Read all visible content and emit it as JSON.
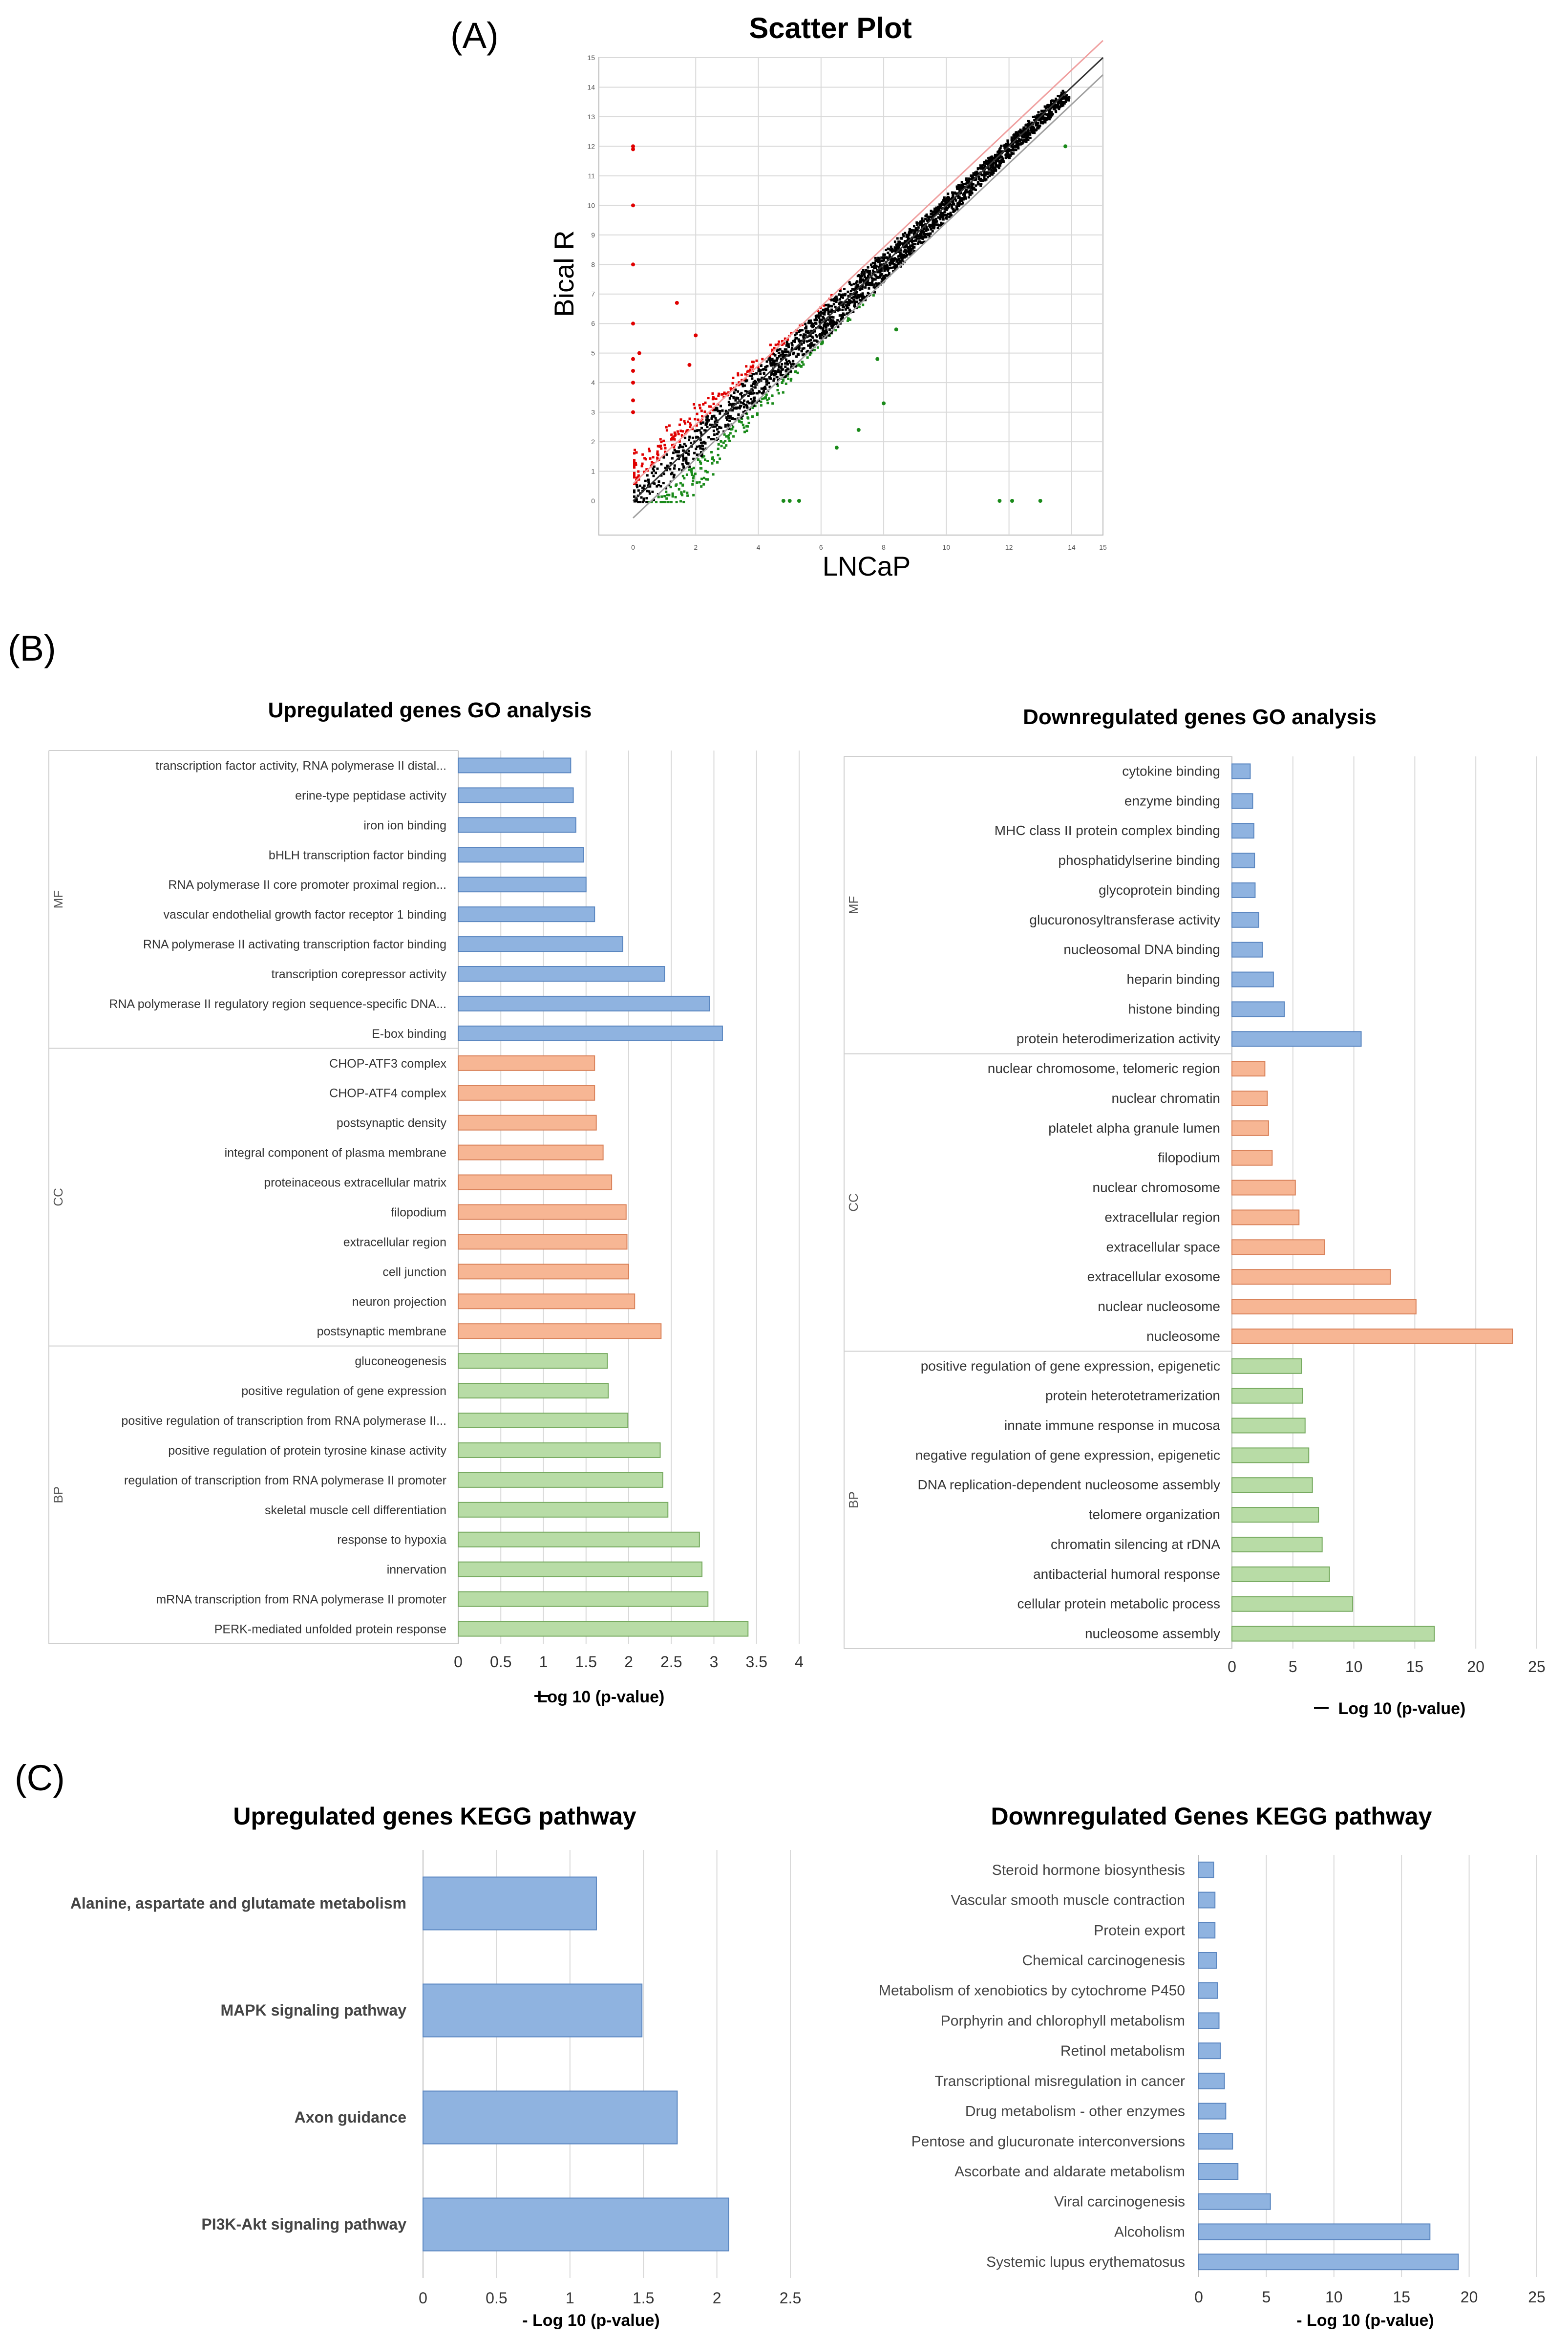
{
  "panels": {
    "a": "(A)",
    "b": "(B)",
    "c": "(C)"
  },
  "colors": {
    "mf": "#8fb3e0",
    "mf_stroke": "#5a86c0",
    "cc": "#f7b694",
    "cc_stroke": "#d9825a",
    "bp": "#b8dca6",
    "bp_stroke": "#77aa60",
    "up": "#e00000",
    "down": "#1a8a1a",
    "mid": "#000000",
    "grid": "#d9d9d9"
  },
  "chart_data": [
    {
      "id": "scatter",
      "type": "scatter",
      "title": "Scatter Plot",
      "xlabel": "LNCaP",
      "ylabel": "Bical R",
      "xlim": [
        0,
        15
      ],
      "ylim": [
        0,
        15
      ],
      "xticks": [
        "0",
        "2",
        "4",
        "6",
        "8",
        "10",
        "12",
        "14",
        "15"
      ],
      "yticks": [
        "0",
        "1",
        "2",
        "3",
        "4",
        "5",
        "6",
        "7",
        "8",
        "9",
        "10",
        "11",
        "12",
        "13",
        "14",
        "15"
      ],
      "lines": [
        {
          "name": "y = x",
          "slope": 1,
          "intercept": 0,
          "color": "#333333"
        },
        {
          "name": "upper threshold",
          "slope": 1,
          "intercept": 0.58,
          "color": "#f0a0a0"
        },
        {
          "name": "lower threshold",
          "slope": 1,
          "intercept": -0.58,
          "color": "#a0a0a0"
        }
      ],
      "outliers_up": [
        [
          0,
          12
        ],
        [
          0,
          11.9
        ],
        [
          0,
          10
        ],
        [
          0,
          8
        ],
        [
          0,
          6
        ],
        [
          0,
          4.8
        ],
        [
          0,
          4.4
        ],
        [
          0,
          4
        ],
        [
          0,
          3.4
        ],
        [
          0,
          3
        ],
        [
          0.2,
          5
        ],
        [
          1.4,
          6.7
        ],
        [
          2,
          5.6
        ],
        [
          1.8,
          4.6
        ]
      ],
      "outliers_down": [
        [
          11.7,
          0
        ],
        [
          12.1,
          0
        ],
        [
          13,
          0
        ],
        [
          13.8,
          12
        ],
        [
          8.4,
          5.8
        ],
        [
          8,
          3.3
        ],
        [
          7.8,
          4.8
        ],
        [
          5,
          0
        ],
        [
          5.3,
          0
        ],
        [
          4.8,
          0
        ],
        [
          6.5,
          1.8
        ],
        [
          7.2,
          2.4
        ]
      ]
    },
    {
      "id": "go-up",
      "type": "bar",
      "orientation": "horizontal",
      "title": "Upregulated genes GO analysis",
      "xlabel": "Log 10 (p-value)",
      "xlim": [
        0,
        4
      ],
      "xticks": [
        "0",
        "0.5",
        "1",
        "1.5",
        "2",
        "2.5",
        "3",
        "3.5",
        "4"
      ],
      "groups": [
        {
          "name": "MF",
          "color": "mf",
          "categories": [
            "transcription factor activity, RNA polymerase II distal...",
            "erine-type peptidase activity",
            "iron ion binding",
            "bHLH transcription factor binding",
            "RNA polymerase II core promoter proximal region...",
            "vascular endothelial growth factor receptor 1 binding",
            "RNA polymerase II activating transcription factor binding",
            "transcription corepressor activity",
            "RNA polymerase II regulatory region sequence-specific DNA...",
            "E-box binding"
          ],
          "values": [
            1.32,
            1.35,
            1.38,
            1.47,
            1.5,
            1.6,
            1.93,
            2.42,
            2.95,
            3.1
          ]
        },
        {
          "name": "CC",
          "color": "cc",
          "categories": [
            "CHOP-ATF3 complex",
            "CHOP-ATF4 complex",
            "postsynaptic density",
            "integral component of plasma membrane",
            "proteinaceous extracellular matrix",
            "filopodium",
            "extracellular region",
            "cell junction",
            "neuron projection",
            "postsynaptic membrane"
          ],
          "values": [
            1.6,
            1.6,
            1.62,
            1.7,
            1.8,
            1.97,
            1.98,
            2.0,
            2.07,
            2.38
          ]
        },
        {
          "name": "BP",
          "color": "bp",
          "categories": [
            "gluconeogenesis",
            "positive regulation of gene expression",
            "positive regulation of transcription from RNA polymerase II...",
            "positive regulation of protein tyrosine kinase activity",
            "regulation of transcription from RNA polymerase II promoter",
            "skeletal muscle cell differentiation",
            "response to hypoxia",
            "innervation",
            "mRNA transcription from RNA polymerase II promoter",
            "PERK-mediated unfolded protein response"
          ],
          "values": [
            1.75,
            1.76,
            1.99,
            2.37,
            2.4,
            2.46,
            2.83,
            2.86,
            2.93,
            3.4
          ]
        }
      ]
    },
    {
      "id": "go-down",
      "type": "bar",
      "orientation": "horizontal",
      "title": "Downregulated genes GO analysis",
      "xlabel": "Log 10 (p-value)",
      "xlim": [
        0,
        25
      ],
      "xticks": [
        "0",
        "5",
        "10",
        "15",
        "20",
        "25"
      ],
      "groups": [
        {
          "name": "MF",
          "color": "mf",
          "categories": [
            "cytokine binding",
            "enzyme binding",
            "MHC class II protein complex binding",
            "phosphatidylserine binding",
            "glycoprotein binding",
            "glucuronosyltransferase activity",
            "nucleosomal DNA binding",
            "heparin binding",
            "histone binding",
            "protein heterodimerization activity"
          ],
          "values": [
            1.5,
            1.7,
            1.8,
            1.85,
            1.9,
            2.2,
            2.5,
            3.4,
            4.3,
            10.6
          ]
        },
        {
          "name": "CC",
          "color": "cc",
          "categories": [
            "nuclear chromosome, telomeric region",
            "nuclear chromatin",
            "platelet alpha granule lumen",
            "filopodium",
            "nuclear chromosome",
            "extracellular region",
            "extracellular space",
            "extracellular exosome",
            "nuclear nucleosome",
            "nucleosome"
          ],
          "values": [
            2.7,
            2.9,
            3.0,
            3.3,
            5.2,
            5.5,
            7.6,
            13.0,
            15.1,
            23.0
          ]
        },
        {
          "name": "BP",
          "color": "bp",
          "categories": [
            "positive regulation of gene expression, epigenetic",
            "protein heterotetramerization",
            "innate immune response in mucosa",
            "negative regulation of gene expression, epigenetic",
            "DNA replication-dependent nucleosome assembly",
            "telomere organization",
            "chromatin silencing at rDNA",
            "antibacterial humoral response",
            "cellular protein metabolic process",
            "nucleosome assembly"
          ],
          "values": [
            5.7,
            5.8,
            6.0,
            6.3,
            6.6,
            7.1,
            7.4,
            8.0,
            9.9,
            16.6
          ]
        }
      ]
    },
    {
      "id": "kegg-up",
      "type": "bar",
      "orientation": "horizontal",
      "title": "Upregulated  genes KEGG pathway",
      "xlabel": "- Log 10 (p-value)",
      "xlim": [
        0,
        2.5
      ],
      "xticks": [
        "0",
        "0.5",
        "1",
        "1.5",
        "2",
        "2.5"
      ],
      "categories": [
        "Alanine, aspartate and glutamate metabolism",
        "MAPK signaling pathway",
        "Axon guidance",
        "PI3K-Akt signaling pathway"
      ],
      "values": [
        1.18,
        1.49,
        1.73,
        2.08
      ]
    },
    {
      "id": "kegg-down",
      "type": "bar",
      "orientation": "horizontal",
      "title": "Downregulated  Genes  KEGG  pathway",
      "xlabel": "- Log 10 (p-value)",
      "xlim": [
        0,
        25
      ],
      "xticks": [
        "0",
        "5",
        "10",
        "15",
        "20",
        "25"
      ],
      "categories": [
        "Steroid hormone biosynthesis",
        "Vascular smooth muscle contraction",
        "Protein export",
        "Chemical carcinogenesis",
        "Metabolism of xenobiotics by cytochrome P450",
        "Porphyrin and chlorophyll metabolism",
        "Retinol metabolism",
        "Transcriptional misregulation in cancer",
        "Drug metabolism - other enzymes",
        "Pentose and glucuronate interconversions",
        "Ascorbate and aldarate metabolism",
        "Viral carcinogenesis",
        "Alcoholism",
        "Systemic lupus erythematosus"
      ],
      "values": [
        1.1,
        1.2,
        1.2,
        1.3,
        1.4,
        1.5,
        1.6,
        1.9,
        2.0,
        2.5,
        2.9,
        5.3,
        17.1,
        19.2
      ]
    }
  ]
}
